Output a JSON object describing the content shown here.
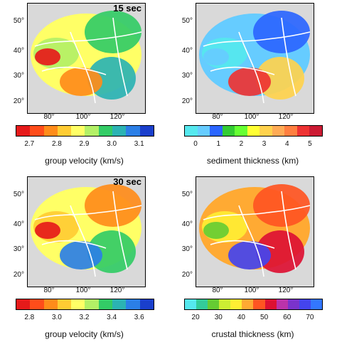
{
  "panels": [
    {
      "period_label": "15 sec",
      "lat_labels": [
        "50°",
        "40°",
        "30°",
        "20°"
      ],
      "lon_labels": [
        "80°",
        "100°",
        "120°"
      ],
      "colorbar": {
        "title": "group velocity (km/s)",
        "ticks": [
          "2.7",
          "2.8",
          "2.9",
          "3.0",
          "3.1"
        ],
        "colors": [
          "#e61a1a",
          "#ff4d1a",
          "#ff8c1a",
          "#ffcc33",
          "#ffff66",
          "#b3f066",
          "#33cc66",
          "#2bb3b3",
          "#2b7fe6",
          "#1a3fcc"
        ]
      },
      "field_colors": [
        "#ffff66",
        "#b3f066",
        "#33cc66",
        "#2bb3b3",
        "#ff8c1a",
        "#e61a1a"
      ]
    },
    {
      "period_label": "",
      "lat_labels": [
        "50°",
        "40°",
        "30°",
        "20°"
      ],
      "lon_labels": [
        "80°",
        "100°",
        "120°"
      ],
      "colorbar": {
        "title": "sediment thickness (km)",
        "ticks": [
          "0",
          "1",
          "2",
          "3",
          "4",
          "5"
        ],
        "colors": [
          "#55e8ee",
          "#66ccff",
          "#2b66ff",
          "#33cc33",
          "#66ff33",
          "#ffff33",
          "#ffd24d",
          "#ffab55",
          "#ff7f40",
          "#ee3333",
          "#cc1a33"
        ]
      },
      "field_colors": [
        "#66ccff",
        "#55e8ee",
        "#2b66ff",
        "#ffd24d",
        "#ee3333"
      ]
    },
    {
      "period_label": "30 sec",
      "lat_labels": [
        "50°",
        "40°",
        "30°",
        "20°"
      ],
      "lon_labels": [
        "80°",
        "100°",
        "120°"
      ],
      "colorbar": {
        "title": "group velocity (km/s)",
        "ticks": [
          "2.8",
          "3.0",
          "3.2",
          "3.4",
          "3.6"
        ],
        "colors": [
          "#e61a1a",
          "#ff4d1a",
          "#ff8c1a",
          "#ffcc33",
          "#ffff66",
          "#b3f066",
          "#33cc66",
          "#2bb3b3",
          "#2b7fe6",
          "#1a3fcc"
        ]
      },
      "field_colors": [
        "#ffff66",
        "#ffcc33",
        "#ff8c1a",
        "#33cc66",
        "#2b7fe6",
        "#e61a1a"
      ]
    },
    {
      "period_label": "",
      "lat_labels": [
        "50°",
        "40°",
        "30°",
        "20°"
      ],
      "lon_labels": [
        "80°",
        "100°",
        "120°"
      ],
      "colorbar": {
        "title": "crustal thickness (km)",
        "ticks": [
          "20",
          "30",
          "40",
          "50",
          "60",
          "70"
        ],
        "colors": [
          "#55e8ee",
          "#33cc99",
          "#66cc33",
          "#ccee33",
          "#ffee33",
          "#ffaa33",
          "#ff5522",
          "#dd1133",
          "#bb33aa",
          "#7a33cc",
          "#4444ee",
          "#3377ff"
        ]
      },
      "field_colors": [
        "#ffaa33",
        "#ffee33",
        "#ff5522",
        "#dd1133",
        "#4444ee",
        "#66cc33"
      ]
    }
  ]
}
